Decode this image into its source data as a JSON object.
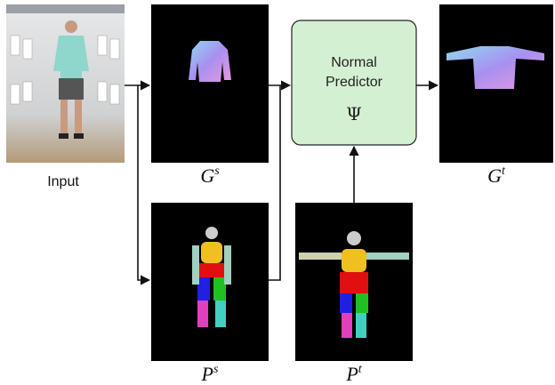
{
  "input": {
    "label": "Input"
  },
  "source_garment": {
    "symbol": "G",
    "sup": "s"
  },
  "source_pose": {
    "symbol": "P",
    "sup": "s"
  },
  "target_pose": {
    "symbol": "P",
    "sup": "t"
  },
  "target_garment": {
    "symbol": "G",
    "sup": "t"
  },
  "predictor": {
    "line1": "Normal",
    "line2": "Predictor",
    "symbol": "Ψ"
  }
}
